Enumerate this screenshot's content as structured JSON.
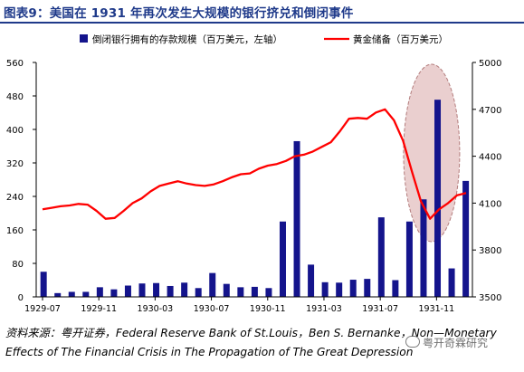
{
  "header": {
    "title": "图表9：美国在 1931 年再次发生大规模的银行挤兑和倒闭事件"
  },
  "chart_data": {
    "type": "bar",
    "title": "图表9：美国在 1931 年再次发生大规模的银行挤兑和倒闭事件",
    "x_tick_labels": [
      "1929-07",
      "1929-11",
      "1930-03",
      "1930-07",
      "1930-11",
      "1931-03",
      "1931-07",
      "1931-11"
    ],
    "y_left": {
      "range": [
        0,
        560
      ],
      "ticks": [
        0,
        80,
        160,
        240,
        320,
        400,
        480,
        560
      ]
    },
    "y_right": {
      "range": [
        3500,
        5000
      ],
      "ticks": [
        3500,
        3800,
        4100,
        4400,
        4700,
        5000
      ]
    },
    "legend_placement": "top",
    "series": [
      {
        "name": "倒闭银行拥有的存款规模（百万美元，左轴）",
        "type": "bar",
        "axis": "left",
        "color": "#14148c",
        "values": [
          60,
          9,
          12,
          12,
          23,
          18,
          27,
          32,
          33,
          26,
          34,
          21,
          57,
          31,
          23,
          24,
          21,
          180,
          372,
          77,
          35,
          34,
          41,
          43,
          190,
          40,
          180,
          233,
          471,
          68,
          277
        ]
      },
      {
        "name": "黄金储备（百万美元）",
        "type": "line",
        "axis": "right",
        "color": "#ff0000",
        "values": [
          4060,
          4070,
          4080,
          4085,
          4095,
          4090,
          4050,
          4000,
          4005,
          4050,
          4100,
          4130,
          4175,
          4210,
          4225,
          4240,
          4225,
          4215,
          4210,
          4220,
          4240,
          4265,
          4285,
          4290,
          4320,
          4340,
          4350,
          4370,
          4400,
          4410,
          4430,
          4460,
          4490,
          4560,
          4640,
          4645,
          4640,
          4680,
          4700,
          4630,
          4500,
          4300,
          4110,
          4000,
          4060,
          4100,
          4150,
          4165
        ]
      }
    ],
    "annotation": "ellipse highlighting 1931-09 to 1931-10",
    "colors": {
      "highlight_fill": "#d9a8a8",
      "axis": "#000000"
    }
  },
  "source": {
    "line1": "资料来源：粤开证券，Federal Reserve Bank of St.Louis，Ben S. Bernanke，Non—Monetary",
    "line2": "Effects of The Financial Crisis in The Propagation of The Great Depression"
  },
  "watermark": {
    "text": "粤开奇霖研究",
    "icon": "wechat-icon"
  }
}
